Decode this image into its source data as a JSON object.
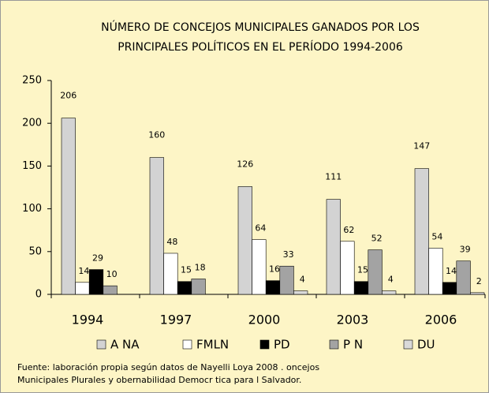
{
  "chart_data": {
    "type": "bar",
    "title": [
      "NÚMERO DE CONCEJOS MUNICIPALES GANADOS POR LOS",
      "PRINCIPALES POLÍTICOS EN EL PERÍODO  1994-2006"
    ],
    "categories": [
      "1994",
      "1997",
      "2000",
      "2003",
      "2006"
    ],
    "series": [
      {
        "name": "A    NA",
        "color": "#d3d3d3",
        "values": [
          206,
          160,
          126,
          111,
          147
        ]
      },
      {
        "name": "FMLN",
        "color": "#ffffff",
        "values": [
          14,
          48,
          64,
          62,
          54
        ]
      },
      {
        "name": "PD",
        "color": "#000000",
        "values": [
          29,
          15,
          16,
          15,
          14
        ]
      },
      {
        "name": "P    N",
        "color": "#a3a3a3",
        "values": [
          10,
          18,
          33,
          52,
          39
        ]
      },
      {
        "name": "DU",
        "color": "#d9d9d9",
        "values": [
          null,
          null,
          4,
          4,
          2
        ]
      }
    ],
    "ylim": [
      0,
      250
    ],
    "yticks": [
      0,
      50,
      100,
      150,
      200,
      250
    ],
    "note": [
      "Fuente:   laboración  propia  según  datos  de  Nayelli  Loya  2008 .    oncejos",
      "Municipales Plurales y   obernabilidad Democr  tica para   l Salvador."
    ]
  }
}
